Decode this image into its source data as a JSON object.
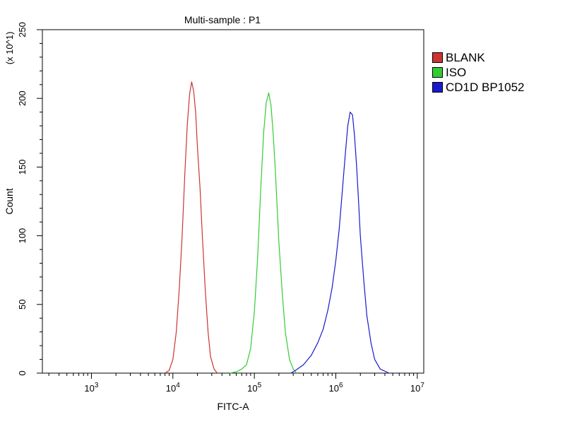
{
  "chart_data": {
    "type": "line",
    "title": "Multi-sample : P1",
    "xlabel": "FITC-A",
    "ylabel": "Count",
    "y_multiplier_label": "(x 10^1)",
    "x_scale": "log",
    "xlim": [
      250,
      12000000
    ],
    "ylim": [
      0,
      250
    ],
    "x_ticks": [
      {
        "base": "10",
        "exp": "3"
      },
      {
        "base": "10",
        "exp": "4"
      },
      {
        "base": "10",
        "exp": "5"
      },
      {
        "base": "10",
        "exp": "6"
      },
      {
        "base": "10",
        "exp": "7"
      }
    ],
    "y_ticks": [
      "0",
      "50",
      "100",
      "150",
      "200",
      "250"
    ],
    "grid": false,
    "legend_position": "right",
    "series": [
      {
        "name": "BLANK",
        "color": "#cc3333",
        "points": [
          [
            8000,
            0
          ],
          [
            9000,
            2
          ],
          [
            10000,
            10
          ],
          [
            11000,
            30
          ],
          [
            12000,
            62
          ],
          [
            13000,
            100
          ],
          [
            14000,
            145
          ],
          [
            15000,
            180
          ],
          [
            16000,
            203
          ],
          [
            17000,
            212
          ],
          [
            18000,
            205
          ],
          [
            19000,
            190
          ],
          [
            20000,
            165
          ],
          [
            21500,
            135
          ],
          [
            23000,
            100
          ],
          [
            25000,
            60
          ],
          [
            27000,
            30
          ],
          [
            29000,
            12
          ],
          [
            32000,
            3
          ],
          [
            35000,
            0
          ]
        ]
      },
      {
        "name": "ISO",
        "color": "#33cc33",
        "points": [
          [
            50000,
            0
          ],
          [
            60000,
            1
          ],
          [
            70000,
            3
          ],
          [
            80000,
            6
          ],
          [
            90000,
            18
          ],
          [
            100000,
            45
          ],
          [
            110000,
            85
          ],
          [
            120000,
            135
          ],
          [
            130000,
            175
          ],
          [
            140000,
            197
          ],
          [
            150000,
            204
          ],
          [
            160000,
            195
          ],
          [
            170000,
            175
          ],
          [
            180000,
            150
          ],
          [
            190000,
            122
          ],
          [
            200000,
            95
          ],
          [
            220000,
            58
          ],
          [
            240000,
            30
          ],
          [
            270000,
            10
          ],
          [
            300000,
            3
          ],
          [
            330000,
            0
          ]
        ]
      },
      {
        "name": "CD1D BP1052",
        "color": "#1a1acc",
        "points": [
          [
            280000,
            0
          ],
          [
            320000,
            2
          ],
          [
            400000,
            6
          ],
          [
            500000,
            13
          ],
          [
            600000,
            22
          ],
          [
            700000,
            32
          ],
          [
            800000,
            46
          ],
          [
            900000,
            62
          ],
          [
            1000000,
            82
          ],
          [
            1100000,
            105
          ],
          [
            1200000,
            132
          ],
          [
            1300000,
            158
          ],
          [
            1400000,
            180
          ],
          [
            1500000,
            190
          ],
          [
            1600000,
            188
          ],
          [
            1700000,
            172
          ],
          [
            1800000,
            150
          ],
          [
            1900000,
            125
          ],
          [
            2000000,
            100
          ],
          [
            2200000,
            68
          ],
          [
            2400000,
            42
          ],
          [
            2700000,
            22
          ],
          [
            3000000,
            10
          ],
          [
            3500000,
            3
          ],
          [
            4500000,
            0
          ]
        ]
      }
    ]
  }
}
